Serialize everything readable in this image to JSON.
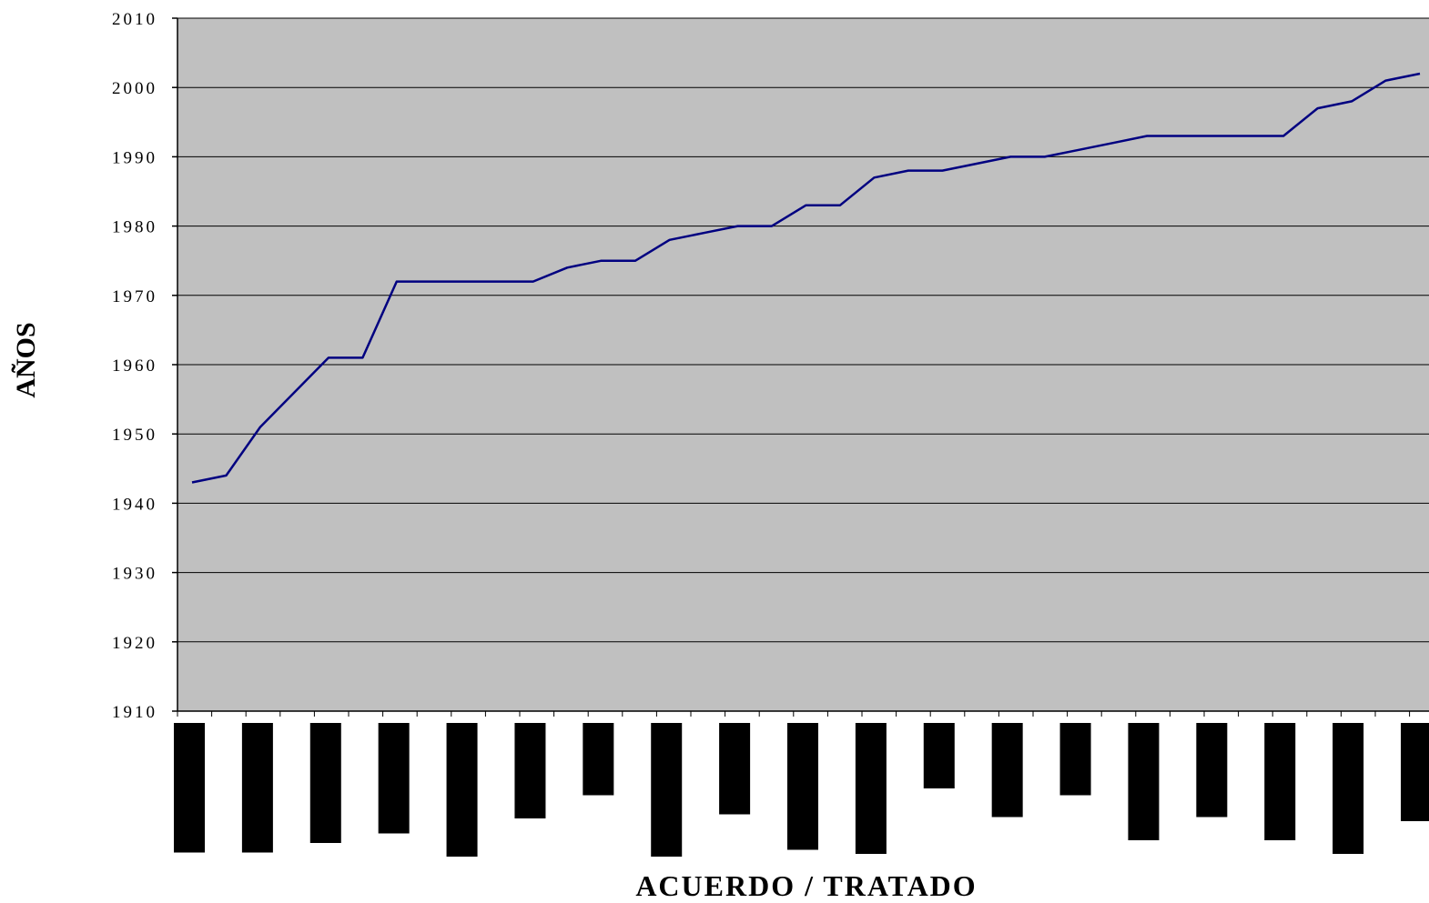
{
  "chart_data": {
    "type": "line",
    "title": "",
    "xlabel": "ACUERDO / TRATADO",
    "ylabel": "AÑOS",
    "ylim": [
      1910,
      2010
    ],
    "yticks": [
      1910,
      1920,
      1930,
      1940,
      1950,
      1960,
      1970,
      1980,
      1990,
      2000,
      2010
    ],
    "grid": true,
    "legend": "none",
    "colors": {
      "plot_background": "#c0c0c0",
      "line": "#000080",
      "gridline": "#000000",
      "bars": "#000000"
    },
    "series": [
      {
        "values": [
          1943,
          1944,
          1951,
          1956,
          1961,
          1961,
          1972,
          1972,
          1972,
          1972,
          1972,
          1974,
          1975,
          1975,
          1978,
          1979,
          1980,
          1980,
          1983,
          1983,
          1987,
          1988,
          1988,
          1989,
          1990,
          1990,
          1991,
          1992,
          1993,
          1993,
          1993,
          1993,
          1993,
          1997,
          1998,
          2001,
          2002
        ]
      }
    ],
    "category_label_bars": [
      0.95,
      0.95,
      0.88,
      0.81,
      0.98,
      0.7,
      0.53,
      0.98,
      0.67,
      0.93,
      0.96,
      0.48,
      0.69,
      0.53,
      0.86,
      0.69,
      0.86,
      0.96,
      0.72
    ]
  }
}
